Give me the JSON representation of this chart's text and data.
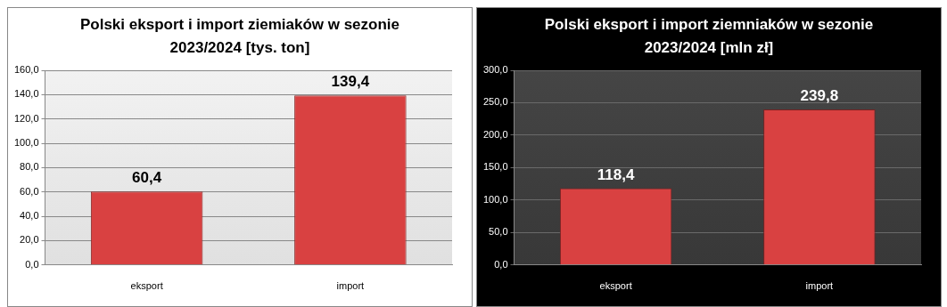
{
  "chart_data": [
    {
      "type": "bar",
      "title": "Polski eksport i import ziemiaków  w sezonie 2023/2024 [tys. ton]",
      "categories": [
        "eksport",
        "import"
      ],
      "values": [
        60.4,
        139.4
      ],
      "value_labels": [
        "60,4",
        "139,4"
      ],
      "color": "#d94141",
      "ylim": [
        0,
        160
      ],
      "yticks": [
        {
          "value": 0,
          "label": "0,0"
        },
        {
          "value": 20,
          "label": "20,0"
        },
        {
          "value": 40,
          "label": "40,0"
        },
        {
          "value": 60,
          "label": "60,0"
        },
        {
          "value": 80,
          "label": "80,0"
        },
        {
          "value": 100,
          "label": "100,0"
        },
        {
          "value": 120,
          "label": "120,0"
        },
        {
          "value": 140,
          "label": "140,0"
        },
        {
          "value": 160,
          "label": "160,0"
        }
      ],
      "grid": "y",
      "legend": false
    },
    {
      "type": "bar",
      "title": "Polski eksport i import ziemniaków  w sezonie 2023/2024 [mln zł]",
      "categories": [
        "eksport",
        "import"
      ],
      "values": [
        118.4,
        239.8
      ],
      "value_labels": [
        "118,4",
        "239,8"
      ],
      "color": "#d94141",
      "ylim": [
        0,
        300
      ],
      "yticks": [
        {
          "value": 0,
          "label": "0,0"
        },
        {
          "value": 50,
          "label": "50,0"
        },
        {
          "value": 100,
          "label": "100,0"
        },
        {
          "value": 150,
          "label": "150,0"
        },
        {
          "value": 200,
          "label": "200,0"
        },
        {
          "value": 250,
          "label": "250,0"
        },
        {
          "value": 300,
          "label": "300,0"
        }
      ],
      "grid": "y",
      "legend": false
    }
  ]
}
